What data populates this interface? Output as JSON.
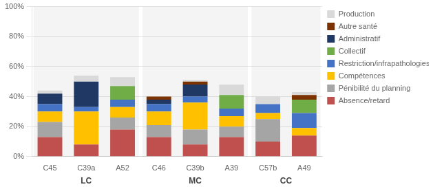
{
  "chart_data": {
    "type": "bar",
    "stacked": true,
    "grid": true,
    "legend": "right",
    "categories": [
      "C45",
      "C39a",
      "A52",
      "C46",
      "C39b",
      "A39",
      "C57b",
      "A49"
    ],
    "groups": [
      {
        "name": "LC",
        "categories": [
          "C45",
          "C39a",
          "A52"
        ]
      },
      {
        "name": "MC",
        "categories": [
          "C46",
          "C39b",
          "A39"
        ]
      },
      {
        "name": "CC",
        "categories": [
          "C57b",
          "A49"
        ]
      }
    ],
    "series": [
      {
        "name": "Absence/retard",
        "color": "#C0504D",
        "values": [
          0.13,
          0.08,
          0.18,
          0.13,
          0.08,
          0.13,
          0.1,
          0.14
        ]
      },
      {
        "name": "Pénibilité du planning",
        "color": "#A5A5A5",
        "values": [
          0.1,
          0.0,
          0.08,
          0.08,
          0.1,
          0.07,
          0.15,
          0.0
        ]
      },
      {
        "name": "Compétences",
        "color": "#FFC000",
        "values": [
          0.07,
          0.22,
          0.07,
          0.09,
          0.18,
          0.07,
          0.04,
          0.05
        ]
      },
      {
        "name": "Restriction/infrapathologies",
        "color": "#4472C4",
        "values": [
          0.05,
          0.03,
          0.05,
          0.05,
          0.04,
          0.05,
          0.06,
          0.1
        ]
      },
      {
        "name": "Collectif",
        "color": "#70AD47",
        "values": [
          0.0,
          0.0,
          0.09,
          0.0,
          0.0,
          0.09,
          0.0,
          0.09
        ]
      },
      {
        "name": "Administratif",
        "color": "#1F3864",
        "values": [
          0.07,
          0.17,
          0.0,
          0.03,
          0.08,
          0.0,
          0.0,
          0.0
        ]
      },
      {
        "name": "Autre santé",
        "color": "#7B3200",
        "values": [
          0.0,
          0.0,
          0.0,
          0.02,
          0.02,
          0.0,
          0.0,
          0.03
        ]
      },
      {
        "name": "Production",
        "color": "#D9D9D9",
        "values": [
          0.02,
          0.04,
          0.06,
          0.0,
          0.01,
          0.07,
          0.05,
          0.02
        ]
      }
    ],
    "ylim": [
      0,
      1.0
    ],
    "yticks": [
      {
        "value": 0,
        "label": "0%"
      },
      {
        "value": 0.2,
        "label": "20%"
      },
      {
        "value": 0.4,
        "label": "40%"
      },
      {
        "value": 0.6,
        "label": "60%"
      },
      {
        "value": 0.8,
        "label": "80%"
      },
      {
        "value": 1.0,
        "label": "100%"
      }
    ]
  }
}
